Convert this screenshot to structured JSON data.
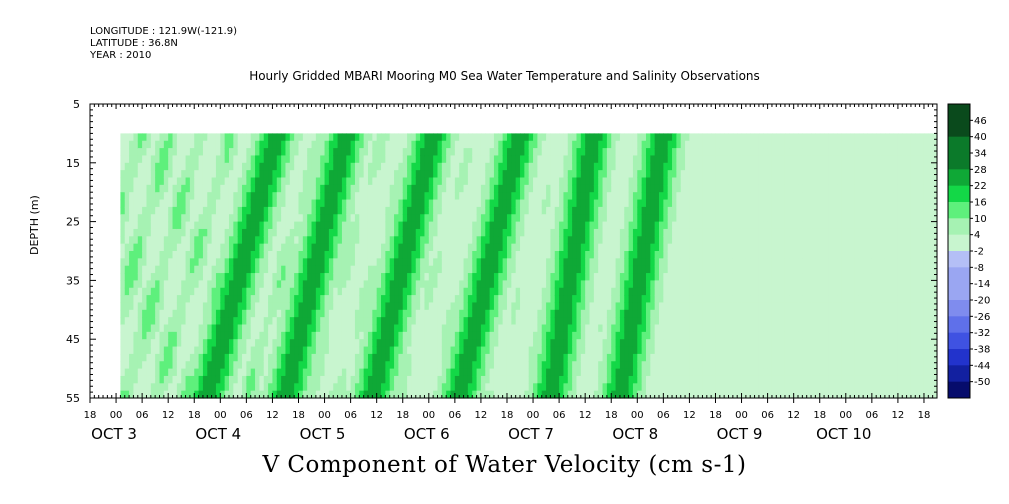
{
  "header": {
    "longitude": "LONGITUDE : 121.9W(-121.9)",
    "latitude": "LATITUDE : 36.8N",
    "year": "YEAR : 2010"
  },
  "chart_data": {
    "type": "heatmap",
    "title": "Hourly Gridded MBARI Mooring M0 Sea Water Temperature and Salinity Observations",
    "variable_label": "V Component of Water Velocity (cm s-1)",
    "ylabel": "DEPTH (m)",
    "y_axis": {
      "ylim": [
        5,
        55
      ],
      "inverted": true,
      "ticks": [
        5,
        15,
        25,
        35,
        45,
        55
      ]
    },
    "x_axis": {
      "start": "OCT 2 18:00",
      "end": "OCT 10 21:00",
      "hour_tick_labels": [
        "18",
        "00",
        "06",
        "12",
        "18",
        "00",
        "06",
        "12",
        "18",
        "00",
        "06",
        "12",
        "18",
        "00",
        "06",
        "12",
        "18",
        "00",
        "06",
        "12",
        "18",
        "00",
        "06",
        "12",
        "18",
        "00",
        "06",
        "12",
        "18",
        "00",
        "06",
        "12",
        "18"
      ],
      "day_labels": [
        "OCT 3",
        "OCT 4",
        "OCT 5",
        "OCT 6",
        "OCT 7",
        "OCT 8",
        "OCT 9",
        "OCT 10"
      ]
    },
    "data_extent": {
      "depth_range": [
        10,
        55
      ],
      "time_start": "OCT 3 01:00"
    },
    "colorbar": {
      "levels": [
        46,
        40,
        34,
        28,
        22,
        16,
        10,
        4,
        -2,
        -8,
        -14,
        -20,
        -26,
        -32,
        -38,
        -44,
        -50
      ],
      "range": [
        -50,
        50
      ]
    },
    "positive_band_centers": [
      {
        "top": "OCT 4 13:00",
        "slope_hours": 16
      },
      {
        "top": "OCT 5 05:00",
        "slope_hours": 14
      },
      {
        "top": "OCT 6 01:00",
        "slope_hours": 14
      },
      {
        "top": "OCT 6 21:00",
        "slope_hours": 14
      },
      {
        "top": "OCT 7 14:00",
        "slope_hours": 10
      },
      {
        "top": "OCT 8 06:00",
        "slope_hours": 10
      }
    ],
    "grid": false,
    "colormap": "blue-white-green"
  }
}
